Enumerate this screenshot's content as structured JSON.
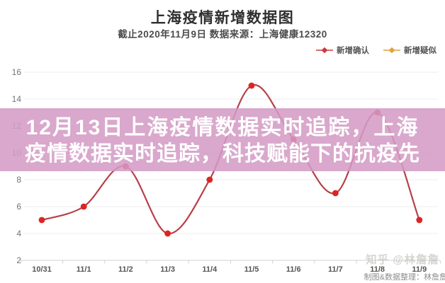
{
  "header": {
    "title": "上海疫情新增数据图",
    "subtitle": "截止2020年11月9日 数据来源：上海健康12320"
  },
  "legend": {
    "items": [
      {
        "label": "新增确认",
        "color": "#c73a40"
      },
      {
        "label": "新增疑似",
        "color": "#dfa23f"
      }
    ]
  },
  "overlay_banner": {
    "line1": "12月13日上海疫情数据实时追踪，上海",
    "line2": "疫情数据实时追踪，科技赋能下的抗疫先",
    "bg_color": "rgba(211,155,196,0.87)",
    "text_color": "#ffffff"
  },
  "watermark": {
    "brand": "知乎 @林詹詹",
    "credit": "制图&数据整理：林詹詹"
  },
  "chart_data": {
    "type": "line",
    "title": "上海疫情新增数据图",
    "categories": [
      "10/31",
      "11/1",
      "11/2",
      "11/3",
      "11/4",
      "11/5",
      "11/6",
      "11/7",
      "11/8",
      "11/9"
    ],
    "series": [
      {
        "name": "新增确认",
        "values": [
          5,
          6,
          9,
          4,
          8,
          15,
          11,
          7,
          13,
          5
        ],
        "line_color": "#b84049",
        "point_color": "#dd2424",
        "smooth": true,
        "visible": true
      },
      {
        "name": "新增疑似",
        "values": [],
        "line_color": "#dfa23f",
        "point_color": "#dfa23f",
        "smooth": true,
        "visible": false
      }
    ],
    "xlabel": "",
    "ylabel": "",
    "ylim": [
      2,
      16
    ],
    "yticks": [
      16,
      14,
      12,
      10,
      8,
      6,
      4,
      2
    ],
    "grid": true,
    "legend_position": "top-right",
    "colors": {
      "gridline": "#ededed",
      "axis": "#d2d2d2",
      "ytick_label": "#747474",
      "xtick_label": "#555555"
    }
  }
}
